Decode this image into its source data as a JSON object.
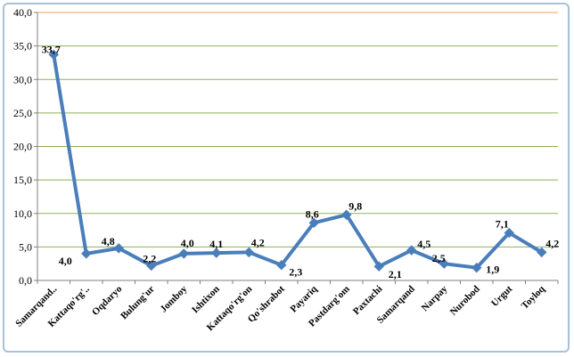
{
  "chart_data": {
    "type": "line",
    "categories": [
      "Samarqand..",
      "Kattaqo'rg'..",
      "Oqdaryo",
      "Bulung'ur",
      "Jomboy",
      "Ishtixon",
      "Kattaqo'rg'on",
      "Qo'shrabot",
      "Payariq",
      "Pastdarg'om",
      "Paxtachi",
      "Samarqand",
      "Narpay",
      "Nurobod",
      "Urgut",
      "Toyloq"
    ],
    "values": [
      33.7,
      4.0,
      4.8,
      2.2,
      4.0,
      4.1,
      4.2,
      2.3,
      8.6,
      9.8,
      2.1,
      4.5,
      2.5,
      1.9,
      7.1,
      4.2
    ],
    "value_labels": [
      "33,7",
      "4,0",
      "4,8",
      "2,2",
      "4,0",
      "4,1",
      "4,2",
      "2,3",
      "8,6",
      "9,8",
      "2,1",
      "4,5",
      "2,5",
      "1,9",
      "7,1",
      "4,2"
    ],
    "ylim": [
      0,
      40
    ],
    "yticks": [
      "0,0",
      "5,0",
      "10,0",
      "15,0",
      "20,0",
      "25,0",
      "30,0",
      "35,0",
      "40,0"
    ],
    "grid": true,
    "series_color": "#4a7ebb",
    "grid_color": "#8db255",
    "top_line_color": "#e8a15a",
    "axis_color": "#808080",
    "legend": "none"
  }
}
